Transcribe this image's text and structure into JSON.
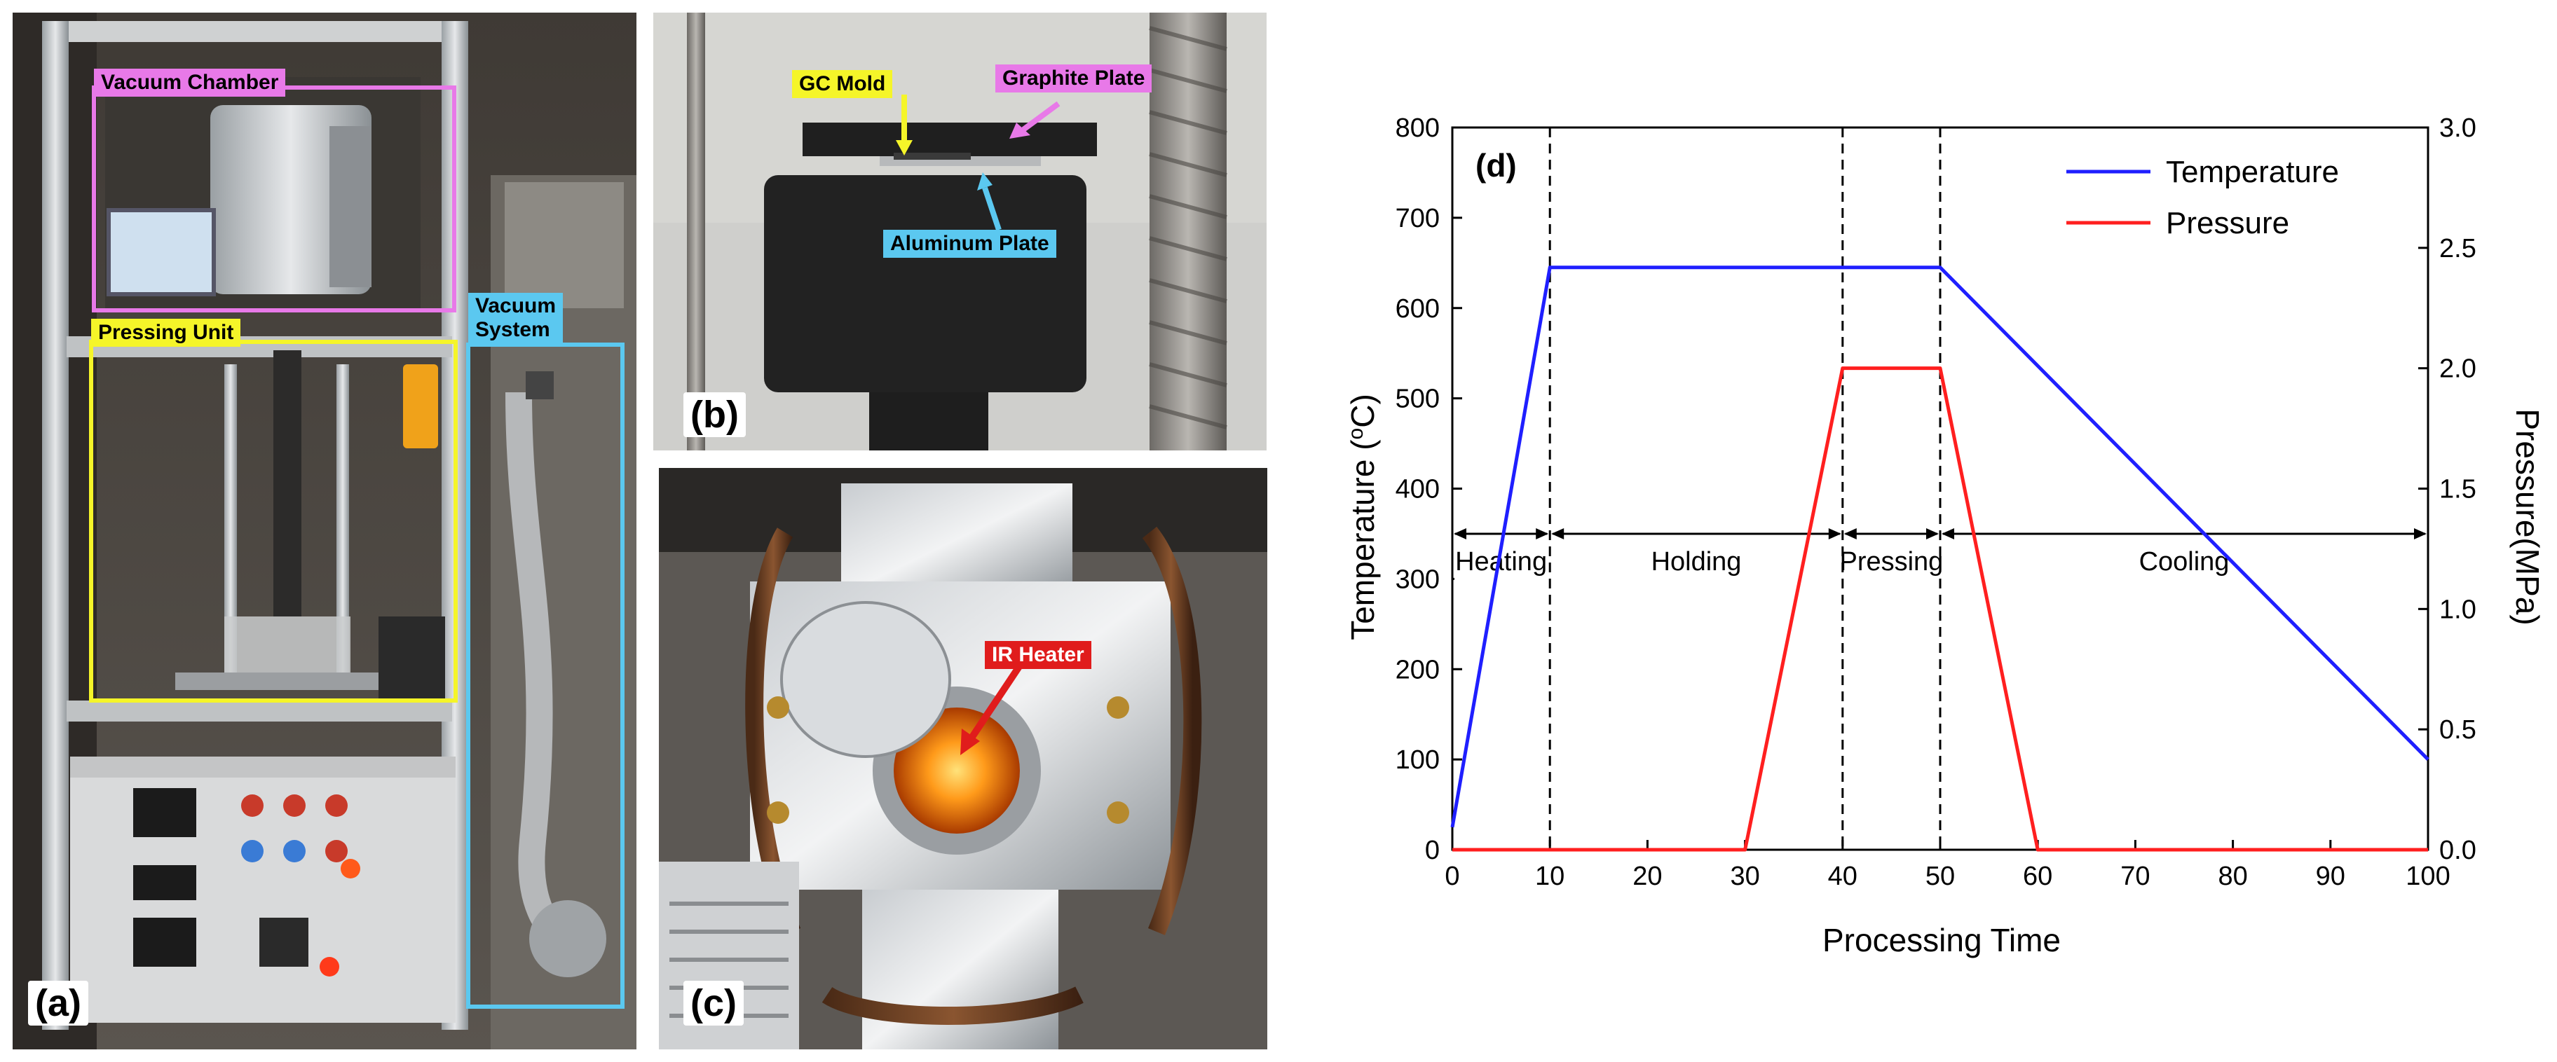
{
  "panels": {
    "a": {
      "label": "(a)",
      "callouts": {
        "vacuum_chamber": "Vacuum Chamber",
        "pressing_unit": "Pressing Unit",
        "vacuum_system": "Vacuum\nSystem"
      },
      "colors": {
        "vacuum_chamber": "#e879e8",
        "pressing_unit": "#f5f529",
        "vacuum_system": "#5bc8f0"
      }
    },
    "b": {
      "label": "(b)",
      "callouts": {
        "gc_mold": "GC Mold",
        "graphite_plate": "Graphite Plate",
        "aluminum_plate": "Aluminum Plate"
      },
      "colors": {
        "gc_mold": "#f5f529",
        "graphite_plate": "#e879e8",
        "aluminum_plate": "#5bc8f0"
      }
    },
    "c": {
      "label": "(c)",
      "callouts": {
        "ir_heater": "IR Heater"
      },
      "colors": {
        "ir_heater": "#e01c1c"
      }
    }
  },
  "chart_data": {
    "type": "line",
    "panel_label": "(d)",
    "title": "",
    "xlabel": "Processing Time",
    "ylabel_left": "Temperature (°C)",
    "ylabel_left_parts": [
      "Temperature (",
      "o",
      "C)"
    ],
    "ylabel_right": "Pressure(MPa)",
    "xlim": [
      0,
      100
    ],
    "ylim_left": [
      0,
      800
    ],
    "ylim_right": [
      0,
      3.0
    ],
    "x_ticks": [
      0,
      10,
      20,
      30,
      40,
      50,
      60,
      70,
      80,
      90,
      100
    ],
    "y_left_ticks": [
      0,
      100,
      200,
      300,
      400,
      500,
      600,
      700,
      800
    ],
    "y_right_ticks": [
      "0.0",
      "0.5",
      "1.0",
      "1.5",
      "2.0",
      "2.5",
      "3.0"
    ],
    "grid": false,
    "legend_position": "top-right",
    "series": [
      {
        "name": "Temperature",
        "axis": "left",
        "color": "#1f1fff",
        "points": [
          [
            0,
            25
          ],
          [
            10,
            645
          ],
          [
            50,
            645
          ],
          [
            100,
            100
          ]
        ]
      },
      {
        "name": "Pressure",
        "axis": "right",
        "color": "#ff1f1f",
        "points": [
          [
            0,
            0
          ],
          [
            30,
            0
          ],
          [
            40,
            2.0
          ],
          [
            50,
            2.0
          ],
          [
            60,
            0
          ],
          [
            100,
            0
          ]
        ]
      }
    ],
    "phase_boundaries": [
      10,
      40,
      50
    ],
    "phases": [
      {
        "label": "Heating",
        "from": 0,
        "to": 10
      },
      {
        "label": "Holding",
        "from": 10,
        "to": 40
      },
      {
        "label": "Pressing",
        "from": 40,
        "to": 50
      },
      {
        "label": "Cooling",
        "from": 50,
        "to": 100
      }
    ],
    "phase_arrow_level": 350
  }
}
